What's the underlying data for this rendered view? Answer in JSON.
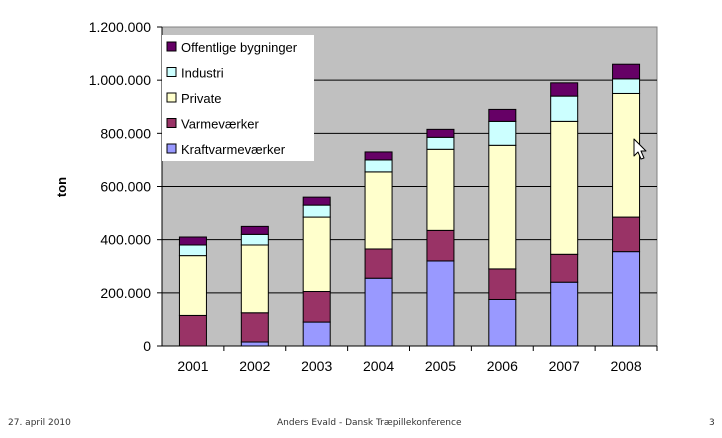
{
  "chart_data": {
    "type": "bar",
    "stacked": true,
    "ylabel": "ton",
    "xlabel": "",
    "ylim": [
      0,
      1200000
    ],
    "yticks": [
      0,
      200000,
      400000,
      600000,
      800000,
      1000000,
      1200000
    ],
    "ytick_labels": [
      "0",
      "200.000",
      "400.000",
      "600.000",
      "800.000",
      "1.000.000",
      "1.200.000"
    ],
    "categories": [
      "2001",
      "2002",
      "2003",
      "2004",
      "2005",
      "2006",
      "2007",
      "2008"
    ],
    "grid": true,
    "plot_background": "#c0c0c0",
    "legend_position": "top-left",
    "series": [
      {
        "name": "Kraftvarmeværker",
        "color": "#9999ff",
        "values": [
          0,
          15000,
          90000,
          255000,
          320000,
          175000,
          240000,
          355000
        ]
      },
      {
        "name": "Varmeværker",
        "color": "#993366",
        "values": [
          115000,
          110000,
          115000,
          110000,
          115000,
          115000,
          105000,
          130000
        ]
      },
      {
        "name": "Private",
        "color": "#ffffcc",
        "values": [
          225000,
          255000,
          280000,
          290000,
          305000,
          465000,
          500000,
          465000
        ]
      },
      {
        "name": "Industri",
        "color": "#ccffff",
        "values": [
          40000,
          40000,
          45000,
          45000,
          45000,
          90000,
          95000,
          55000
        ]
      },
      {
        "name": "Offentlige bygninger",
        "color": "#660066",
        "values": [
          30000,
          30000,
          30000,
          30000,
          30000,
          45000,
          50000,
          55000
        ]
      }
    ]
  },
  "footer": {
    "left": "27. april 2010",
    "center": "Anders Evald - Dansk Træpillekonference",
    "right": "3"
  },
  "cursor_icon": "arrow-cursor-icon"
}
